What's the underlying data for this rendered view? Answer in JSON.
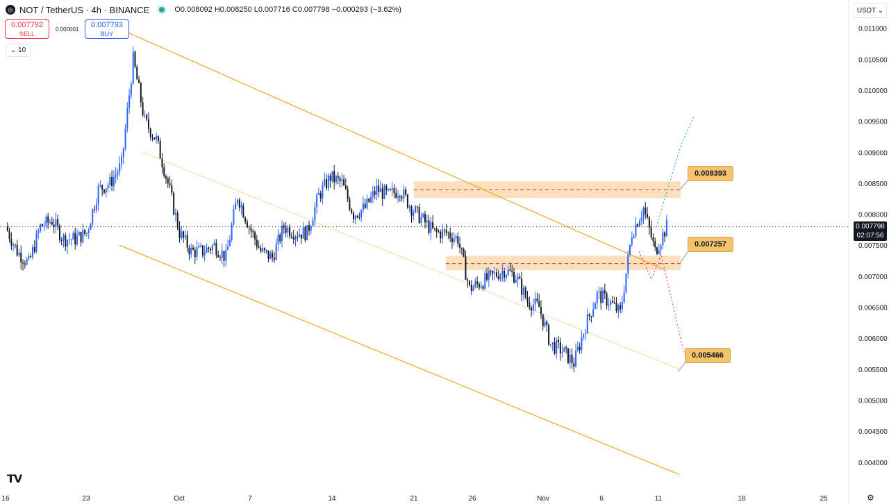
{
  "header": {
    "pair": "NOT / TetherUS · 4h · BINANCE",
    "ohlc": "O0.008092 H0.008250 L0.007716 C0.007798 −0.000293 (−3.62%)"
  },
  "trade": {
    "sell_price": "0.007792",
    "sell_label": "SELL",
    "buy_price": "0.007793",
    "buy_label": "BUY",
    "spread": "0.000001"
  },
  "controls": {
    "interval": "⌄ 10",
    "currency": "USDT ⌄"
  },
  "icons": {
    "logo": "tradingview-logo-icon",
    "settings": "gear-icon",
    "status": "market-open-dot-icon"
  },
  "colors": {
    "up": "#2962ff",
    "down": "#131722",
    "channel": "#f5a623",
    "zone": "#fbd4a6",
    "annotation": "#f4c36b"
  },
  "price_tag": {
    "value": "0.007798",
    "countdown": "02:07:56"
  },
  "chart_data": {
    "type": "candlestick",
    "symbol": "NOT/USDT",
    "timeframe": "4h",
    "xlabel": "",
    "ylabel": "",
    "ylim": [
      0.0038,
      0.0112
    ],
    "y_ticks": [
      "0.011000",
      "0.010500",
      "0.010000",
      "0.009500",
      "0.009000",
      "0.008500",
      "0.008000",
      "0.007500",
      "0.007000",
      "0.006500",
      "0.006000",
      "0.005500",
      "0.005000",
      "0.004500",
      "0.004000"
    ],
    "x_ticks": [
      "16",
      "23",
      "Oct",
      "7",
      "14",
      "21",
      "26",
      "Nov",
      "6",
      "11",
      "18",
      "25"
    ],
    "price_path": [
      [
        "Sep 16",
        0.0078
      ],
      [
        "Sep 17",
        0.0074
      ],
      [
        "Sep 18",
        0.0072
      ],
      [
        "Sep 19",
        0.0078
      ],
      [
        "Sep 20",
        0.0079
      ],
      [
        "Sep 21",
        0.0076
      ],
      [
        "Sep 22",
        0.0076
      ],
      [
        "Sep 23",
        0.0077
      ],
      [
        "Sep 24",
        0.0084
      ],
      [
        "Sep 25",
        0.0085
      ],
      [
        "Sep 26",
        0.0088
      ],
      [
        "Sep 27",
        0.0105
      ],
      [
        "Sep 28",
        0.0095
      ],
      [
        "Sep 29",
        0.0092
      ],
      [
        "Sep 30",
        0.0085
      ],
      [
        "Oct 1",
        0.0077
      ],
      [
        "Oct 2",
        0.0074
      ],
      [
        "Oct 3",
        0.0074
      ],
      [
        "Oct 4",
        0.0075
      ],
      [
        "Oct 5",
        0.0073
      ],
      [
        "Oct 6",
        0.0083
      ],
      [
        "Oct 7",
        0.0078
      ],
      [
        "Oct 8",
        0.0074
      ],
      [
        "Oct 9",
        0.0073
      ],
      [
        "Oct 10",
        0.0078
      ],
      [
        "Oct 11",
        0.0077
      ],
      [
        "Oct 12",
        0.0077
      ],
      [
        "Oct 13",
        0.0083
      ],
      [
        "Oct 14",
        0.0086
      ],
      [
        "Oct 15",
        0.0085
      ],
      [
        "Oct 16",
        0.008
      ],
      [
        "Oct 17",
        0.0081
      ],
      [
        "Oct 18",
        0.0084
      ],
      [
        "Oct 19",
        0.0083
      ],
      [
        "Oct 20",
        0.0084
      ],
      [
        "Oct 21",
        0.0081
      ],
      [
        "Oct 22",
        0.0079
      ],
      [
        "Oct 23",
        0.0077
      ],
      [
        "Oct 24",
        0.0077
      ],
      [
        "Oct 25",
        0.0076
      ],
      [
        "Oct 26",
        0.0068
      ],
      [
        "Oct 27",
        0.0069
      ],
      [
        "Oct 28",
        0.007
      ],
      [
        "Oct 29",
        0.0071
      ],
      [
        "Oct 30",
        0.007
      ],
      [
        "Oct 31",
        0.0066
      ],
      [
        "Nov 1",
        0.0065
      ],
      [
        "Nov 2",
        0.0059
      ],
      [
        "Nov 3",
        0.0058
      ],
      [
        "Nov 4",
        0.0056
      ],
      [
        "Nov 5",
        0.0062
      ],
      [
        "Nov 6",
        0.0067
      ],
      [
        "Nov 7",
        0.0066
      ],
      [
        "Nov 8",
        0.0064
      ],
      [
        "Nov 9",
        0.0077
      ],
      [
        "Nov 10",
        0.0081
      ],
      [
        "Nov 11",
        0.0074
      ],
      [
        "Nov 12",
        0.0078
      ]
    ],
    "last_price": 0.007798,
    "zones": [
      {
        "low": 0.00826,
        "high": 0.00853,
        "dashed_mid": 0.008393
      },
      {
        "low": 0.0071,
        "high": 0.00733,
        "dashed_mid": 0.007205
      }
    ],
    "annotations": [
      "0.008393",
      "0.007257",
      "0.005466"
    ],
    "channel": {
      "upper": [
        [
          "Sep 21",
          0.011
        ],
        [
          "Nov 12",
          0.0071
        ]
      ],
      "middle": [
        [
          "Sep 26",
          0.009
        ],
        [
          "Nov 13",
          0.0055
        ]
      ],
      "lower": [
        [
          "Sep 25",
          0.0075
        ],
        [
          "Nov 14",
          0.0038
        ]
      ]
    },
    "projections": {
      "bullish": [
        0.0091,
        0.0096
      ],
      "bearish": [
        0.0072,
        0.0055
      ]
    },
    "grid": false
  }
}
